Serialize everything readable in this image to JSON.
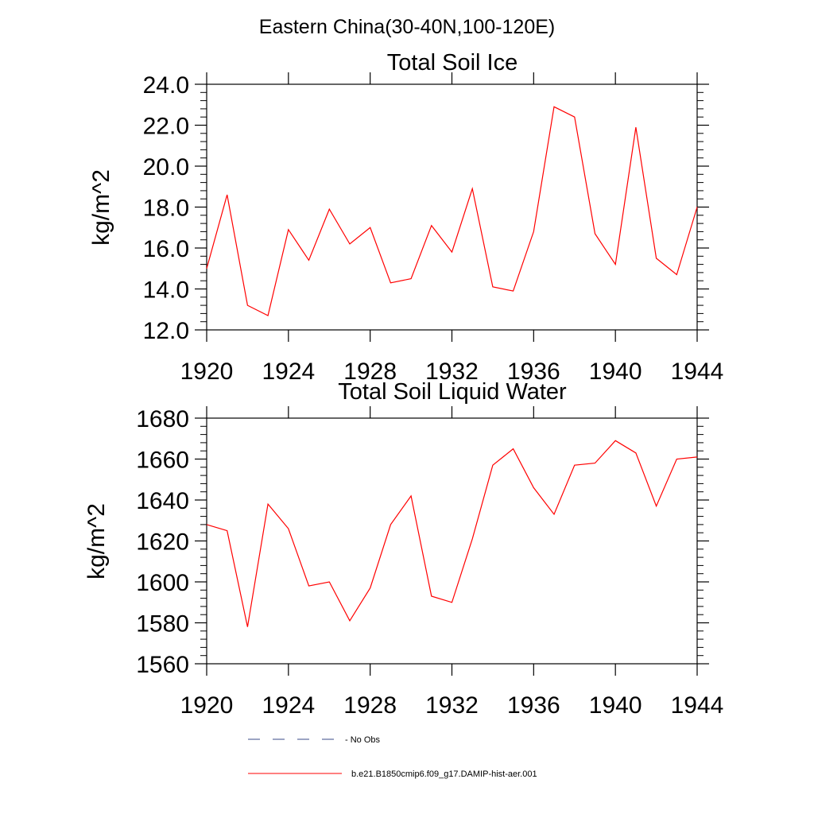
{
  "figure_title": "Eastern China(30-40N,100-120E)",
  "chart_data": [
    {
      "type": "line",
      "title": "Total Soil Ice",
      "xlabel": "",
      "ylabel": "kg/m^2",
      "xlim": [
        1920,
        1944
      ],
      "ylim": [
        12.0,
        24.0
      ],
      "x_ticks": [
        1920,
        1924,
        1928,
        1932,
        1936,
        1940,
        1944
      ],
      "x_tick_labels": [
        "1920",
        "1924",
        "1928",
        "1932",
        "1936",
        "1940",
        "1944"
      ],
      "y_ticks": [
        12.0,
        14.0,
        16.0,
        18.0,
        20.0,
        22.0,
        24.0
      ],
      "y_tick_labels": [
        "12.0",
        "14.0",
        "16.0",
        "18.0",
        "20.0",
        "22.0",
        "24.0"
      ],
      "grid": false,
      "x": [
        1920,
        1921,
        1922,
        1923,
        1924,
        1925,
        1926,
        1927,
        1928,
        1929,
        1930,
        1931,
        1932,
        1933,
        1934,
        1935,
        1936,
        1937,
        1938,
        1939,
        1940,
        1941,
        1942,
        1943,
        1944
      ],
      "series": [
        {
          "name": "b.e21.B1850cmip6.f09_g17.DAMIP-hist-aer.001",
          "color": "#ff0000",
          "values": [
            15.0,
            18.6,
            13.2,
            12.7,
            16.9,
            15.4,
            17.9,
            16.2,
            17.0,
            14.3,
            14.5,
            17.1,
            15.8,
            18.9,
            14.1,
            13.9,
            16.8,
            22.9,
            22.4,
            16.7,
            15.2,
            21.9,
            15.5,
            14.7,
            18.0
          ]
        }
      ]
    },
    {
      "type": "line",
      "title": "Total Soil Liquid Water",
      "xlabel": "",
      "ylabel": "kg/m^2",
      "xlim": [
        1920,
        1944
      ],
      "ylim": [
        1560,
        1680
      ],
      "x_ticks": [
        1920,
        1924,
        1928,
        1932,
        1936,
        1940,
        1944
      ],
      "x_tick_labels": [
        "1920",
        "1924",
        "1928",
        "1932",
        "1936",
        "1940",
        "1944"
      ],
      "y_ticks": [
        1560,
        1580,
        1600,
        1620,
        1640,
        1660,
        1680
      ],
      "y_tick_labels": [
        "1560",
        "1580",
        "1600",
        "1620",
        "1640",
        "1660",
        "1680"
      ],
      "grid": false,
      "x": [
        1920,
        1921,
        1922,
        1923,
        1924,
        1925,
        1926,
        1927,
        1928,
        1929,
        1930,
        1931,
        1932,
        1933,
        1934,
        1935,
        1936,
        1937,
        1938,
        1939,
        1940,
        1941,
        1942,
        1943,
        1944
      ],
      "series": [
        {
          "name": "b.e21.B1850cmip6.f09_g17.DAMIP-hist-aer.001",
          "color": "#ff0000",
          "values": [
            1628,
            1625,
            1578,
            1638,
            1626,
            1598,
            1600,
            1581,
            1597,
            1628,
            1642,
            1593,
            1590,
            1621,
            1657,
            1665,
            1646,
            1633,
            1657,
            1658,
            1669,
            1663,
            1637,
            1660,
            1661
          ]
        }
      ]
    }
  ],
  "legend": [
    {
      "label": "- No Obs",
      "style": "dashed",
      "color": "#3a4a8a"
    },
    {
      "label": "b.e21.B1850cmip6.f09_g17.DAMIP-hist-aer.001",
      "style": "solid",
      "color": "#ff0000"
    }
  ]
}
